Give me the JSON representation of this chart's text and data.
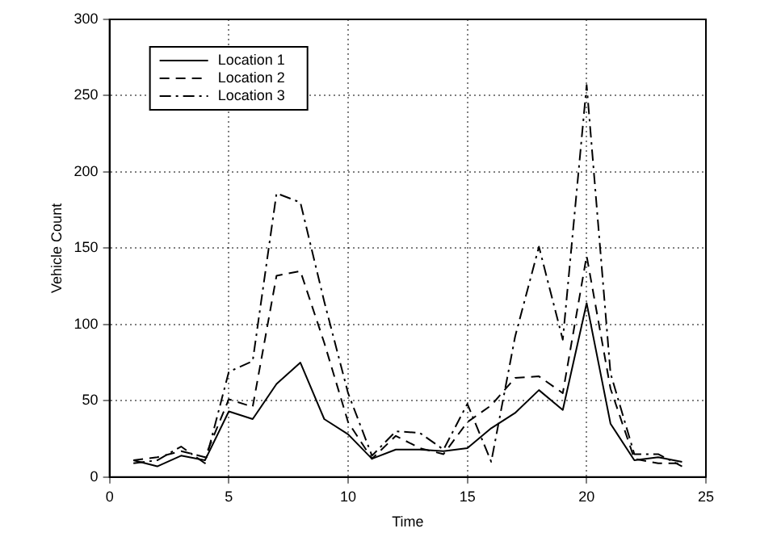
{
  "chart_data": {
    "type": "line",
    "xlabel": "Time",
    "ylabel": "Vehicle Count",
    "x": [
      1,
      2,
      3,
      4,
      5,
      6,
      7,
      8,
      9,
      10,
      11,
      12,
      13,
      14,
      15,
      16,
      17,
      18,
      19,
      20,
      21,
      22,
      23,
      24
    ],
    "series": [
      {
        "name": "Location 1",
        "color": "#000000",
        "line_style": "solid",
        "values": [
          11,
          7,
          14,
          11,
          43,
          38,
          61,
          75,
          38,
          28,
          12,
          18,
          18,
          17,
          19,
          32,
          42,
          57,
          44,
          114,
          35,
          11,
          13,
          10
        ]
      },
      {
        "name": "Location 2",
        "color": "#000000",
        "line_style": "dashed",
        "values": [
          11,
          13,
          17,
          13,
          51,
          46,
          132,
          135,
          88,
          36,
          12,
          27,
          19,
          15,
          36,
          47,
          65,
          66,
          55,
          145,
          58,
          12,
          9,
          9
        ]
      },
      {
        "name": "Location 3",
        "color": "#000000",
        "line_style": "dashdot",
        "values": [
          9,
          11,
          20,
          9,
          69,
          76,
          186,
          180,
          115,
          55,
          14,
          30,
          29,
          18,
          48,
          10,
          92,
          151,
          90,
          257,
          68,
          15,
          15,
          7
        ]
      }
    ],
    "xlim": [
      0,
      25
    ],
    "xticks": [
      0,
      5,
      10,
      15,
      20,
      25
    ],
    "ylim": [
      0,
      300
    ],
    "yticks": [
      0,
      50,
      100,
      150,
      200,
      250,
      300
    ],
    "grid": true,
    "legend": "top left",
    "marker": "none"
  }
}
